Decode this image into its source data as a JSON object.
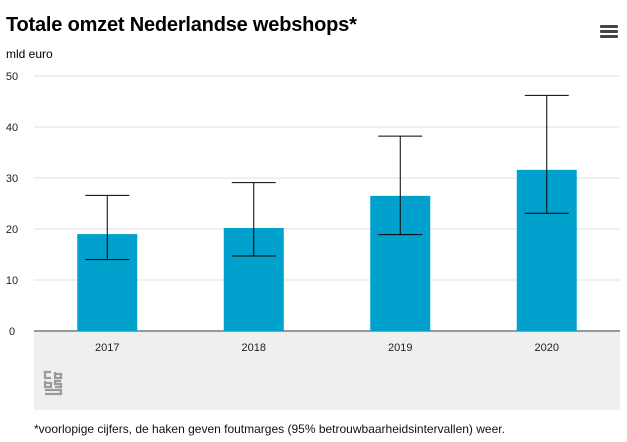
{
  "title": "Totale omzet Nederlandse webshops*",
  "unit_label": "mld euro",
  "footnote": "*voorlopige cijfers, de haken geven foutmarges (95% betrouwbaarheidsintervallen) weer.",
  "menu_icon": "hamburger-menu-icon",
  "logo_icon": "cbs-logo-icon",
  "colors": {
    "bar": "#00a1cd",
    "grid": "#e0e0e0",
    "whisker": "#000000",
    "panel": "#efefef"
  },
  "chart_data": {
    "type": "bar",
    "categories": [
      "2017",
      "2018",
      "2019",
      "2020"
    ],
    "values": [
      19,
      20.2,
      26.5,
      31.6
    ],
    "error_low": [
      14,
      14.7,
      18.9,
      23.1
    ],
    "error_high": [
      26.6,
      29.1,
      38.2,
      46.2
    ],
    "ylabel": "mld euro",
    "ylim": [
      0,
      50
    ],
    "yticks": [
      "0",
      "10",
      "20",
      "30",
      "40",
      "50"
    ],
    "grid": true
  }
}
